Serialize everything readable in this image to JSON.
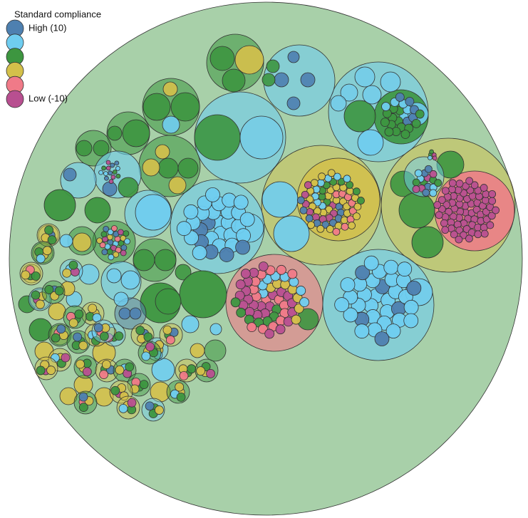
{
  "chart_data": {
    "type": "pack",
    "legend": {
      "title": "Standard compliance",
      "items": [
        {
          "color": "#4e80b0",
          "label": "High (10)"
        },
        {
          "color": "#6fcdf0"
        },
        {
          "color": "#3d9640"
        },
        {
          "color": "#d4c04a"
        },
        {
          "color": "#f07a88"
        },
        {
          "color": "#b84f90",
          "label": "Low (-10)"
        }
      ]
    }
  }
}
